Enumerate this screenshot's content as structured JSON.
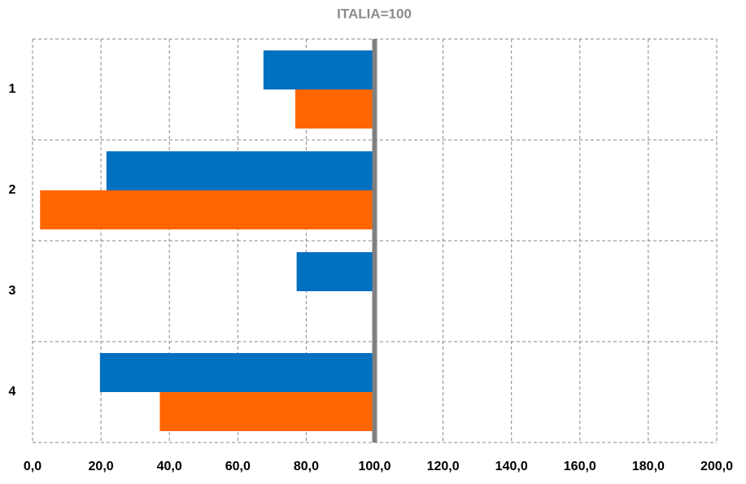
{
  "chart_data": {
    "type": "bar",
    "orientation": "horizontal",
    "title": "ITALIA=100",
    "categories": [
      "1",
      "2",
      "3",
      "4"
    ],
    "baseline": 100,
    "series": [
      {
        "color": "#0070c0",
        "values": [
          67.5,
          21.6,
          77.2,
          19.7
        ]
      },
      {
        "color": "#ff6600",
        "values": [
          76.8,
          2.2,
          null,
          37.2
        ]
      }
    ],
    "xlim": [
      0,
      200
    ],
    "xticks": [
      {
        "value": 0,
        "label": "0,0"
      },
      {
        "value": 20,
        "label": "20,0"
      },
      {
        "value": 40,
        "label": "40,0"
      },
      {
        "value": 60,
        "label": "60,0"
      },
      {
        "value": 80,
        "label": "80,0"
      },
      {
        "value": 100,
        "label": "100,0"
      },
      {
        "value": 120,
        "label": "120,0"
      },
      {
        "value": 140,
        "label": "140,0"
      },
      {
        "value": 160,
        "label": "160,0"
      },
      {
        "value": 180,
        "label": "180,0"
      },
      {
        "value": 200,
        "label": "200,0"
      }
    ],
    "grid": true
  }
}
